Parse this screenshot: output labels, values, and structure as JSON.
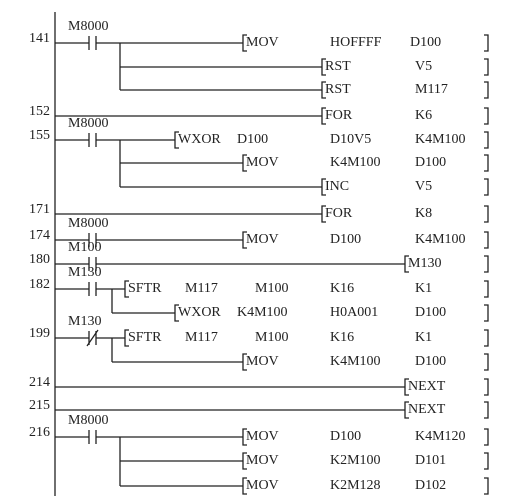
{
  "rungs": [
    {
      "step": "141",
      "contact": "M8000",
      "instructions": [
        {
          "op": "MOV",
          "operands": [
            "HOFFFF",
            "D100"
          ]
        },
        {
          "op": "RST",
          "operands": [
            "V5"
          ]
        },
        {
          "op": "RST",
          "operands": [
            "M117"
          ]
        }
      ]
    },
    {
      "step": "152",
      "instructions": [
        {
          "op": "FOR",
          "operands": [
            "K6"
          ]
        }
      ]
    },
    {
      "step": "155",
      "contact": "M8000",
      "instructions": [
        {
          "op": "WXOR",
          "operands": [
            "D100",
            "D10V5",
            "K4M100"
          ]
        },
        {
          "op": "MOV",
          "operands": [
            "K4M100",
            "D100"
          ]
        },
        {
          "op": "INC",
          "operands": [
            "V5"
          ]
        }
      ]
    },
    {
      "step": "171",
      "instructions": [
        {
          "op": "FOR",
          "operands": [
            "K8"
          ]
        }
      ]
    },
    {
      "step": "174",
      "contact": "M8000",
      "instructions": [
        {
          "op": "MOV",
          "operands": [
            "D100",
            "K4M100"
          ]
        }
      ]
    },
    {
      "step": "180",
      "contact": "M100",
      "instructions": [
        {
          "op": "M130",
          "operands": []
        }
      ]
    },
    {
      "step": "182",
      "contact": "M130",
      "instructions": [
        {
          "op": "SFTR",
          "operands": [
            "M117",
            "M100",
            "K16",
            "K1"
          ]
        },
        {
          "op": "WXOR",
          "operands": [
            "K4M100",
            "H0A001",
            "D100"
          ]
        }
      ]
    },
    {
      "step": "199",
      "contact": "M130",
      "instructions": [
        {
          "op": "SFTR",
          "operands": [
            "M117",
            "M100",
            "K16",
            "K1"
          ]
        },
        {
          "op": "MOV",
          "operands": [
            "K4M100",
            "D100"
          ]
        }
      ]
    },
    {
      "step": "214",
      "instructions": [
        {
          "op": "NEXT",
          "operands": []
        }
      ]
    },
    {
      "step": "215",
      "instructions": [
        {
          "op": "NEXT",
          "operands": []
        }
      ]
    },
    {
      "step": "216",
      "contact": "M8000",
      "instructions": [
        {
          "op": "MOV",
          "operands": [
            "D100",
            "K4M120"
          ]
        },
        {
          "op": "MOV",
          "operands": [
            "K2M100",
            "D101"
          ]
        },
        {
          "op": "MOV",
          "operands": [
            "K2M128",
            "D102"
          ]
        }
      ]
    }
  ]
}
